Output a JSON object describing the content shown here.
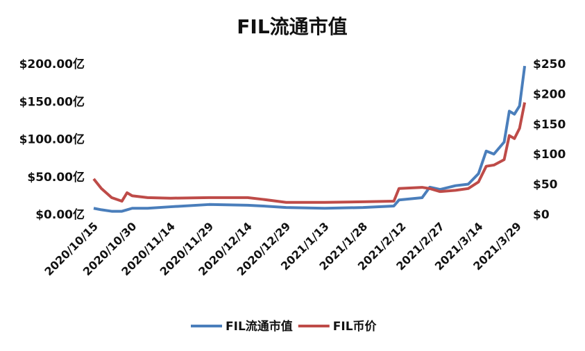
{
  "chart_data": {
    "type": "line",
    "title": "FIL流通市值",
    "x": [
      "2020/10/15",
      "2020/10/18",
      "2020/10/22",
      "2020/10/26",
      "2020/10/28",
      "2020/10/30",
      "2020/11/5",
      "2020/11/14",
      "2020/11/29",
      "2020/12/14",
      "2020/12/20",
      "2020/12/29",
      "2021/1/13",
      "2021/1/28",
      "2021/2/9",
      "2021/2/11",
      "2021/2/20",
      "2021/2/23",
      "2021/2/27",
      "2021/3/5",
      "2021/3/10",
      "2021/3/14",
      "2021/3/17",
      "2021/3/20",
      "2021/3/24",
      "2021/3/26",
      "2021/3/28",
      "2021/3/30",
      "2021/4/1"
    ],
    "series": [
      {
        "name": "FIL流通市值",
        "color": "#4a7ebb",
        "values": [
          9,
          7,
          5,
          5,
          7,
          9,
          9,
          11,
          14,
          13,
          12,
          10,
          9,
          10,
          12,
          20,
          23,
          37,
          34,
          39,
          41,
          55,
          85,
          81,
          97,
          138,
          134,
          145,
          198
        ]
      },
      {
        "name": "FIL币价",
        "color": "#be4b48",
        "axis": "y2",
        "values": [
          60,
          44,
          29,
          23,
          37,
          32,
          29,
          28,
          29,
          29,
          26,
          21,
          21,
          22,
          23,
          44,
          46,
          44,
          39,
          41,
          44,
          55,
          81,
          83,
          92,
          132,
          127,
          144,
          187
        ]
      }
    ],
    "xticks": [
      "2020/10/15",
      "2020/10/30",
      "2020/11/14",
      "2020/11/29",
      "2020/12/14",
      "2020/12/29",
      "2021/1/13",
      "2021/1/28",
      "2021/2/12",
      "2021/2/27",
      "2021/3/14",
      "2021/3/29"
    ],
    "ylim": [
      0,
      200
    ],
    "yticks": [
      {
        "value": 0,
        "label": "$0.00亿"
      },
      {
        "value": 50,
        "label": "$50.00亿"
      },
      {
        "value": 100,
        "label": "$100.00亿"
      },
      {
        "value": 150,
        "label": "$150.00亿"
      },
      {
        "value": 200,
        "label": "$200.00亿"
      }
    ],
    "y2lim": [
      0,
      250
    ],
    "y2ticks": [
      {
        "value": 0,
        "label": "$0"
      },
      {
        "value": 50,
        "label": "$50"
      },
      {
        "value": 100,
        "label": "$100"
      },
      {
        "value": 150,
        "label": "$150"
      },
      {
        "value": 200,
        "label": "$200"
      },
      {
        "value": 250,
        "label": "$250"
      }
    ],
    "legend": "bottom"
  }
}
